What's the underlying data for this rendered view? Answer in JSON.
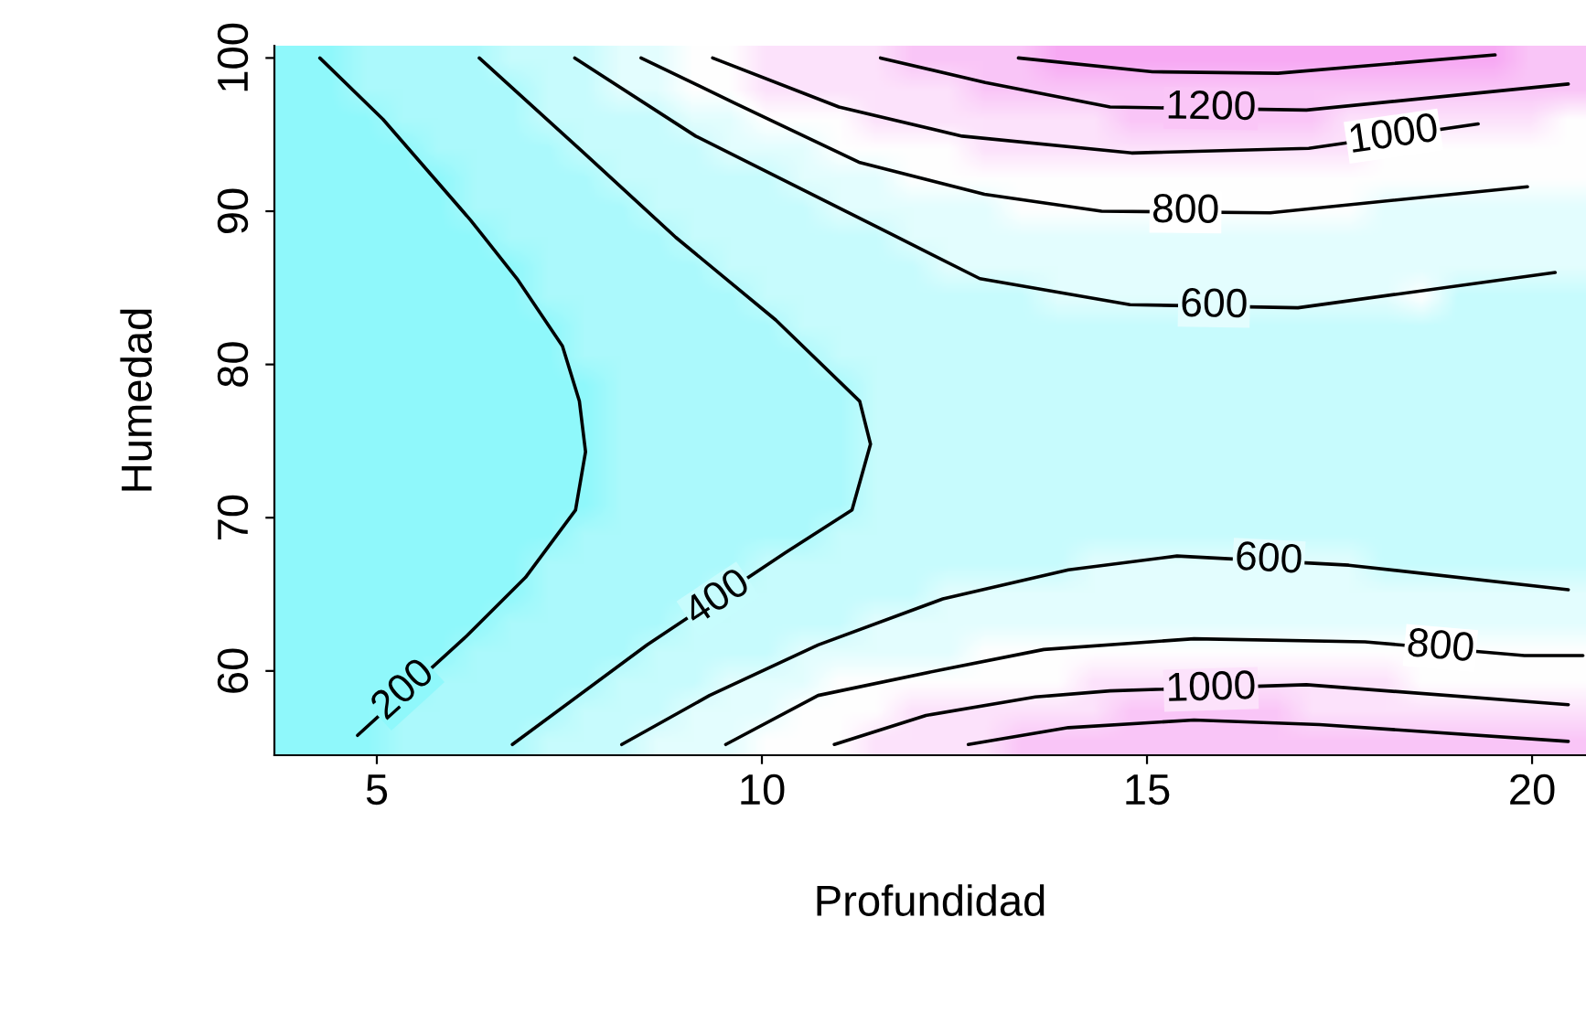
{
  "chart_data": {
    "type": "line",
    "xlabel": "Profundidad",
    "ylabel": "Humedad",
    "xlim": [
      3.67,
      20.7
    ],
    "ylim": [
      54.5,
      100.8
    ],
    "xticks": [
      5,
      10,
      15,
      20
    ],
    "yticks": [
      60,
      70,
      80,
      90,
      100
    ],
    "grid": false,
    "legend": false,
    "marker": "none",
    "line_style": "solid",
    "series": [
      {
        "color": "#000000",
        "x": [
          4.26,
          5.08,
          6.22,
          6.82,
          7.41,
          7.63,
          7.71,
          7.58,
          6.93,
          6.17,
          4.75
        ],
        "values": [
          100,
          96.0,
          89.4,
          85.6,
          81.2,
          77.6,
          74.3,
          70.5,
          66.1,
          62.3,
          55.8
        ]
      },
      {
        "color": "#000000",
        "x": [
          6.33,
          7.69,
          8.88,
          10.18,
          11.27,
          11.41,
          11.17,
          10.3,
          8.51,
          6.76
        ],
        "values": [
          100,
          93.8,
          88.3,
          82.9,
          77.6,
          74.8,
          70.5,
          67.7,
          61.7,
          55.2
        ]
      },
      {
        "color": "#000000",
        "x": [
          7.57,
          9.14,
          11.09,
          12.83,
          14.78,
          16.96,
          20.3
        ],
        "values": [
          100,
          94.9,
          90.0,
          85.6,
          83.9,
          83.7,
          86.0
        ]
      },
      {
        "color": "#000000",
        "x": [
          8.18,
          9.32,
          10.73,
          12.35,
          13.98,
          15.39,
          17.62,
          20.47
        ],
        "values": [
          55.2,
          58.4,
          61.7,
          64.7,
          66.6,
          67.5,
          66.9,
          65.3
        ]
      },
      {
        "color": "#000000",
        "x": [
          8.43,
          9.63,
          11.26,
          12.89,
          14.41,
          16.6,
          19.94
        ],
        "values": [
          100,
          97.1,
          93.2,
          91.1,
          90.0,
          89.9,
          91.6
        ]
      },
      {
        "color": "#000000",
        "x": [
          9.53,
          10.73,
          12.35,
          13.66,
          15.61,
          17.83,
          19.9,
          20.66
        ],
        "values": [
          55.2,
          58.4,
          60.1,
          61.4,
          62.1,
          61.9,
          61.0,
          61.0
        ]
      },
      {
        "color": "#000000",
        "x": [
          9.36,
          11.0,
          12.6,
          14.8,
          17.1,
          19.3
        ],
        "values": [
          100,
          96.8,
          94.9,
          93.8,
          94.1,
          95.7
        ]
      },
      {
        "color": "#000000",
        "x": [
          10.94,
          12.13,
          13.55,
          14.52,
          17.07,
          20.47
        ],
        "values": [
          55.2,
          57.1,
          58.3,
          58.7,
          59.1,
          57.8
        ]
      },
      {
        "color": "#000000",
        "x": [
          11.54,
          12.9,
          14.52,
          17.07,
          20.47
        ],
        "values": [
          100,
          98.4,
          96.8,
          96.6,
          98.3
        ]
      },
      {
        "color": "#000000",
        "x": [
          13.33,
          15.07,
          16.7,
          19.52
        ],
        "values": [
          100,
          99.1,
          99.0,
          100.2
        ]
      },
      {
        "color": "#000000",
        "x": [
          12.68,
          13.98,
          15.61,
          17.24,
          20.47
        ],
        "values": [
          55.2,
          56.3,
          56.8,
          56.5,
          55.4
        ]
      }
    ],
    "annotations": [
      {
        "text": "200",
        "x": 5.35,
        "y": 58.7
      },
      {
        "text": "400",
        "x": 9.43,
        "y": 64.7
      },
      {
        "text": "600",
        "x": 15.87,
        "y": 83.8
      },
      {
        "text": "600",
        "x": 16.58,
        "y": 67.2
      },
      {
        "text": "800",
        "x": 15.5,
        "y": 89.95
      },
      {
        "text": "800",
        "x": 18.81,
        "y": 61.5
      },
      {
        "text": "1000",
        "x": 18.2,
        "y": 94.9
      },
      {
        "text": "1000",
        "x": 15.83,
        "y": 58.8
      },
      {
        "text": "1200",
        "x": 15.83,
        "y": 96.7
      }
    ]
  }
}
